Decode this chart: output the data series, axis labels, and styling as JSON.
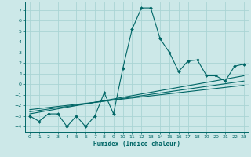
{
  "xlabel": "Humidex (Indice chaleur)",
  "xlim": [
    -0.5,
    23.5
  ],
  "ylim": [
    -4.5,
    7.8
  ],
  "yticks": [
    -4,
    -3,
    -2,
    -1,
    0,
    1,
    2,
    3,
    4,
    5,
    6,
    7
  ],
  "xticks": [
    0,
    1,
    2,
    3,
    4,
    5,
    6,
    7,
    8,
    9,
    10,
    11,
    12,
    13,
    14,
    15,
    16,
    17,
    18,
    19,
    20,
    21,
    22,
    23
  ],
  "bg_color": "#cce8e8",
  "grid_color": "#aad4d4",
  "line_color": "#006666",
  "main_series_x": [
    0,
    1,
    2,
    3,
    4,
    5,
    6,
    7,
    8,
    9,
    10,
    11,
    12,
    13,
    14,
    15,
    16,
    17,
    18,
    19,
    20,
    21,
    22,
    23
  ],
  "main_series_y": [
    -3.0,
    -3.5,
    -2.8,
    -2.8,
    -4.0,
    -3.0,
    -4.0,
    -3.0,
    -0.8,
    -2.8,
    1.5,
    5.2,
    7.2,
    7.2,
    4.3,
    3.0,
    1.2,
    2.2,
    2.3,
    0.8,
    0.8,
    0.3,
    1.7,
    1.9
  ],
  "line1_x": [
    0,
    23
  ],
  "line1_y": [
    -2.8,
    0.8
  ],
  "line2_x": [
    0,
    23
  ],
  "line2_y": [
    -2.6,
    0.3
  ],
  "line3_x": [
    0,
    23
  ],
  "line3_y": [
    -2.4,
    -0.1
  ]
}
